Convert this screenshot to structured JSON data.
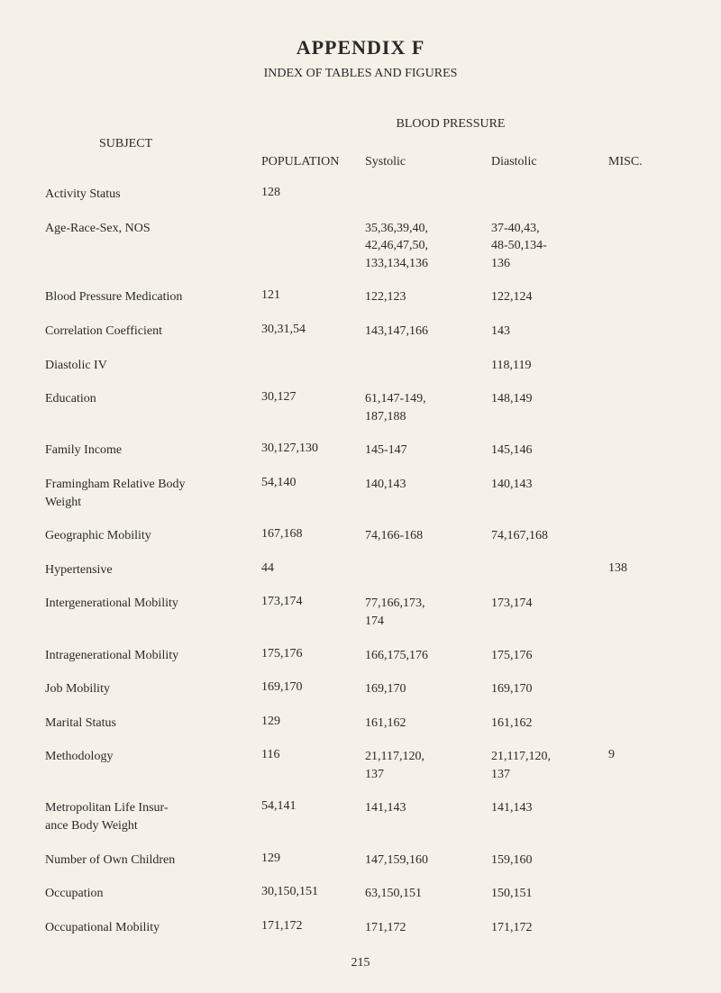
{
  "title": "APPENDIX F",
  "subtitle": "INDEX OF TABLES AND FIGURES",
  "bp_header": "BLOOD PRESSURE",
  "subject_label": "SUBJECT",
  "headers": {
    "population": "POPULATION",
    "systolic": "Systolic",
    "diastolic": "Diastolic",
    "misc": "MISC."
  },
  "rows": [
    {
      "subject": "Activity Status",
      "population": "128",
      "systolic": "",
      "diastolic": "",
      "misc": ""
    },
    {
      "subject": "Age-Race-Sex, NOS",
      "population": "",
      "systolic": "35,36,39,40,\n42,46,47,50,\n133,134,136",
      "diastolic": "37-40,43,\n48-50,134-\n136",
      "misc": ""
    },
    {
      "subject": "Blood Pressure Medication",
      "population": "121",
      "systolic": "122,123",
      "diastolic": "122,124",
      "misc": ""
    },
    {
      "subject": "Correlation Coefficient",
      "population": "30,31,54",
      "systolic": "143,147,166",
      "diastolic": "143",
      "misc": ""
    },
    {
      "subject": "Diastolic IV",
      "population": "",
      "systolic": "",
      "diastolic": "118,119",
      "misc": ""
    },
    {
      "subject": "Education",
      "population": "30,127",
      "systolic": "61,147-149,\n187,188",
      "diastolic": "148,149",
      "misc": ""
    },
    {
      "subject": "Family Income",
      "population": "30,127,130",
      "systolic": "145-147",
      "diastolic": "145,146",
      "misc": ""
    },
    {
      "subject": "Framingham Relative Body\n Weight",
      "population": "54,140",
      "systolic": "140,143",
      "diastolic": "140,143",
      "misc": ""
    },
    {
      "subject": "Geographic Mobility",
      "population": "167,168",
      "systolic": "74,166-168",
      "diastolic": "74,167,168",
      "misc": ""
    },
    {
      "subject": "Hypertensive",
      "population": "44",
      "systolic": "",
      "diastolic": "",
      "misc": "138"
    },
    {
      "subject": "Intergenerational Mobility",
      "population": "173,174",
      "systolic": "77,166,173,\n174",
      "diastolic": "173,174",
      "misc": ""
    },
    {
      "subject": "Intragenerational Mobility",
      "population": "175,176",
      "systolic": "166,175,176",
      "diastolic": "175,176",
      "misc": ""
    },
    {
      "subject": "Job Mobility",
      "population": "169,170",
      "systolic": "169,170",
      "diastolic": "169,170",
      "misc": ""
    },
    {
      "subject": "Marital Status",
      "population": "129",
      "systolic": "161,162",
      "diastolic": "161,162",
      "misc": ""
    },
    {
      "subject": "Methodology",
      "population": "116",
      "systolic": "21,117,120,\n137",
      "diastolic": "21,117,120,\n137",
      "misc": "9"
    },
    {
      "subject": "Metropolitan Life Insur-\n ance Body Weight",
      "population": "54,141",
      "systolic": "141,143",
      "diastolic": "141,143",
      "misc": ""
    },
    {
      "subject": "Number of Own Children",
      "population": "129",
      "systolic": "147,159,160",
      "diastolic": "159,160",
      "misc": ""
    },
    {
      "subject": "Occupation",
      "population": "30,150,151",
      "systolic": "63,150,151",
      "diastolic": "150,151",
      "misc": ""
    },
    {
      "subject": "Occupational Mobility",
      "population": "171,172",
      "systolic": "171,172",
      "diastolic": "171,172",
      "misc": ""
    }
  ],
  "page_number": "215"
}
